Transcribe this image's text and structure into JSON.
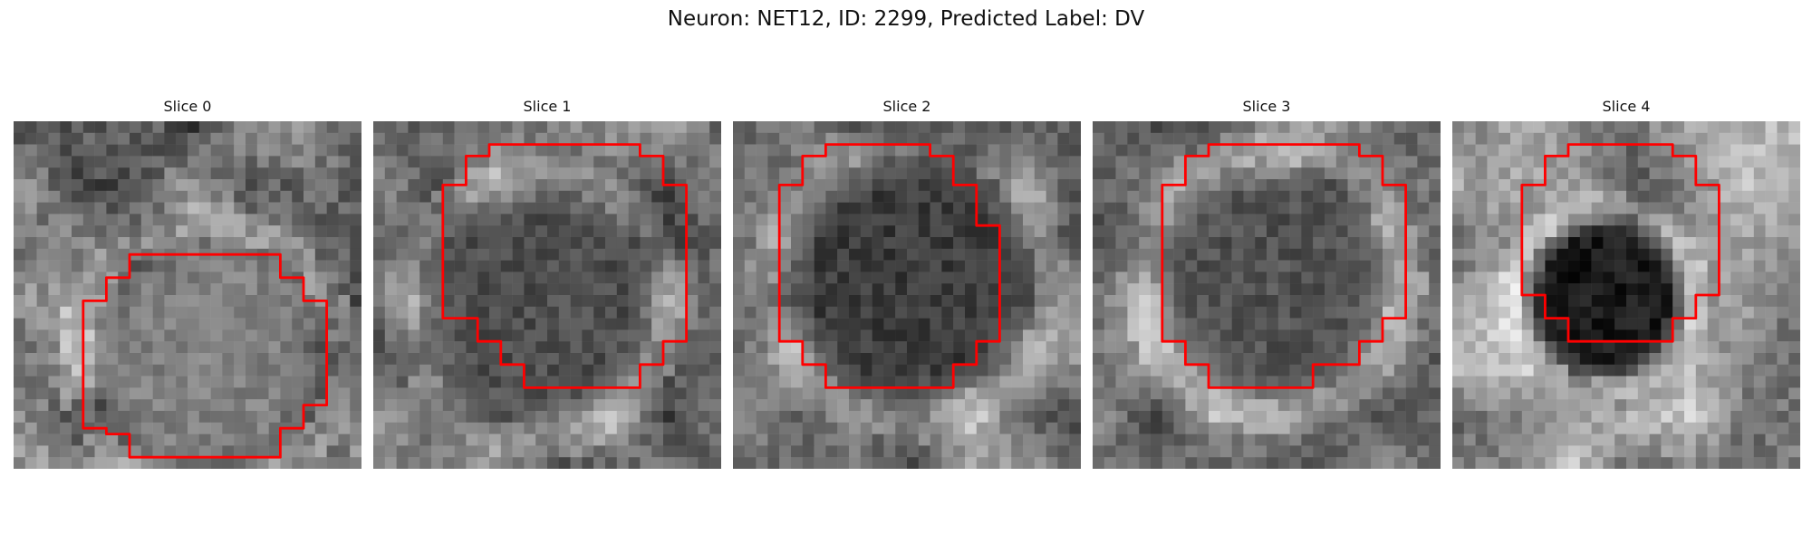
{
  "figure": {
    "title": "Neuron: NET12, ID: 2299, Predicted Label: DV",
    "outline_color": "#ff0000",
    "colormap": "gray",
    "grid_size": 30
  },
  "slices": [
    {
      "title": "Slice 0",
      "seed": 11,
      "base": 118,
      "noise": 62,
      "blob_value": 128,
      "blob_center": [
        0.54,
        0.66
      ],
      "blob_radius": 0.3,
      "outline": [
        [
          10,
          11.5
        ],
        [
          23,
          11.5
        ],
        [
          23,
          13.5
        ],
        [
          25,
          13.5
        ],
        [
          25,
          15.5
        ],
        [
          27,
          15.5
        ],
        [
          27,
          24.5
        ],
        [
          25,
          24.5
        ],
        [
          25,
          26.5
        ],
        [
          23,
          26.5
        ],
        [
          23,
          29
        ],
        [
          10,
          29
        ],
        [
          10,
          27
        ],
        [
          8,
          27
        ],
        [
          8,
          26.5
        ],
        [
          6,
          26.5
        ],
        [
          6,
          15.5
        ],
        [
          8,
          15.5
        ],
        [
          8,
          13.5
        ],
        [
          10,
          13.5
        ]
      ]
    },
    {
      "title": "Slice 1",
      "seed": 23,
      "base": 120,
      "noise": 50,
      "blob_value": 78,
      "blob_center": [
        0.45,
        0.52
      ],
      "blob_radius": 0.3,
      "outline": [
        [
          10,
          2
        ],
        [
          23,
          2
        ],
        [
          23,
          3
        ],
        [
          25,
          3
        ],
        [
          25,
          5.5
        ],
        [
          27,
          5.5
        ],
        [
          27,
          19
        ],
        [
          25,
          19
        ],
        [
          25,
          21
        ],
        [
          23,
          21
        ],
        [
          23,
          23
        ],
        [
          13,
          23
        ],
        [
          13,
          21
        ],
        [
          11,
          21
        ],
        [
          11,
          19
        ],
        [
          9,
          19
        ],
        [
          9,
          17
        ],
        [
          6,
          17
        ],
        [
          6,
          5.5
        ],
        [
          8,
          5.5
        ],
        [
          8,
          3
        ],
        [
          10,
          3
        ]
      ]
    },
    {
      "title": "Slice 2",
      "seed": 37,
      "base": 120,
      "noise": 45,
      "blob_value": 60,
      "blob_center": [
        0.49,
        0.44
      ],
      "blob_radius": 0.32,
      "outline": [
        [
          8,
          2
        ],
        [
          17,
          2
        ],
        [
          17,
          3
        ],
        [
          19,
          3
        ],
        [
          19,
          5.5
        ],
        [
          21,
          5.5
        ],
        [
          21,
          9
        ],
        [
          23,
          9
        ],
        [
          23,
          19
        ],
        [
          21,
          19
        ],
        [
          21,
          21
        ],
        [
          19,
          21
        ],
        [
          19,
          23
        ],
        [
          8,
          23
        ],
        [
          8,
          21
        ],
        [
          6,
          21
        ],
        [
          6,
          19
        ],
        [
          4,
          19
        ],
        [
          4,
          5.5
        ],
        [
          6,
          5.5
        ],
        [
          6,
          3
        ],
        [
          8,
          3
        ]
      ]
    },
    {
      "title": "Slice 3",
      "seed": 53,
      "base": 132,
      "noise": 48,
      "blob_value": 82,
      "blob_center": [
        0.5,
        0.44
      ],
      "blob_radius": 0.3,
      "outline": [
        [
          10,
          2
        ],
        [
          23,
          2
        ],
        [
          23,
          3
        ],
        [
          25,
          3
        ],
        [
          25,
          5.5
        ],
        [
          27,
          5.5
        ],
        [
          27,
          17
        ],
        [
          25,
          17
        ],
        [
          25,
          19
        ],
        [
          23,
          19
        ],
        [
          23,
          21
        ],
        [
          19,
          21
        ],
        [
          19,
          23
        ],
        [
          10,
          23
        ],
        [
          10,
          21
        ],
        [
          8,
          21
        ],
        [
          8,
          19
        ],
        [
          6,
          19
        ],
        [
          6,
          5.5
        ],
        [
          8,
          5.5
        ],
        [
          8,
          3
        ],
        [
          10,
          3
        ]
      ]
    },
    {
      "title": "Slice 4",
      "seed": 71,
      "base": 145,
      "noise": 55,
      "blob_value": 25,
      "blob_center": [
        0.42,
        0.49
      ],
      "blob_radius": 0.21,
      "outline": [
        [
          10,
          2
        ],
        [
          19,
          2
        ],
        [
          19,
          3
        ],
        [
          21,
          3
        ],
        [
          21,
          5.5
        ],
        [
          23,
          5.5
        ],
        [
          23,
          15
        ],
        [
          21,
          15
        ],
        [
          21,
          17
        ],
        [
          19,
          17
        ],
        [
          19,
          19
        ],
        [
          10,
          19
        ],
        [
          10,
          17
        ],
        [
          8,
          17
        ],
        [
          8,
          15
        ],
        [
          6,
          15
        ],
        [
          6,
          5.5
        ],
        [
          8,
          5.5
        ],
        [
          8,
          3
        ],
        [
          10,
          3
        ]
      ]
    }
  ]
}
